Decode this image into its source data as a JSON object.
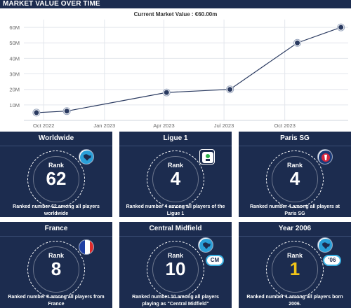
{
  "header": {
    "title": "MARKET VALUE OVER TIME"
  },
  "chart_data": {
    "type": "line",
    "title": "Current Market Value : €60.00m",
    "xlabel": "",
    "ylabel": "",
    "y_ticks": [
      "0",
      "10M",
      "20M",
      "30M",
      "40M",
      "50M",
      "60M"
    ],
    "ylim": [
      0,
      65
    ],
    "x_ticks": [
      "Oct 2022",
      "Jan 2023",
      "Apr 2023",
      "Jul 2023",
      "Oct 2023"
    ],
    "x_tick_dates": [
      "2022-10-01",
      "2023-01-01",
      "2023-04-01",
      "2023-07-01",
      "2023-10-01"
    ],
    "x": [
      "2022-09-20",
      "2022-11-05",
      "2023-04-05",
      "2023-07-10",
      "2023-10-20",
      "2023-12-25"
    ],
    "values": [
      5,
      6,
      18,
      20,
      50,
      60
    ],
    "grid": true,
    "colors": {
      "line": "#2a3a60",
      "marker": "#2a3a60",
      "grid": "#e3e6ec"
    }
  },
  "cards": [
    {
      "title": "Worldwide",
      "rank_label": "Rank",
      "rank": "62",
      "desc": "Ranked number 62 among all players worldwide",
      "icon": "globe-icon"
    },
    {
      "title": "Ligue 1",
      "rank_label": "Rank",
      "rank": "4",
      "desc": "Ranked number 4 among all players of the Ligue 1",
      "icon": "ligue1-logo-icon"
    },
    {
      "title": "Paris SG",
      "rank_label": "Rank",
      "rank": "4",
      "desc": "Ranked number 4 among all players at Paris SG",
      "icon": "psg-crest-icon"
    },
    {
      "title": "France",
      "rank_label": "Rank",
      "rank": "8",
      "desc": "Ranked number 8 among all players from France",
      "icon": "france-flag-icon"
    },
    {
      "title": "Central Midfield",
      "rank_label": "Rank",
      "rank": "10",
      "desc": "Ranked number 10 among all players playing as \"Central Midfield\"",
      "icon": "globe-icon",
      "pill": "CM"
    },
    {
      "title": "Year 2006",
      "rank_label": "Rank",
      "rank": "1",
      "desc": "Ranked number 1 among all players born 2006.",
      "icon": "globe-icon",
      "pill": "'06"
    }
  ],
  "colors": {
    "card_bg": "#1c2c4f",
    "accent": "#3ab0e2",
    "gold": "#f0c419"
  }
}
